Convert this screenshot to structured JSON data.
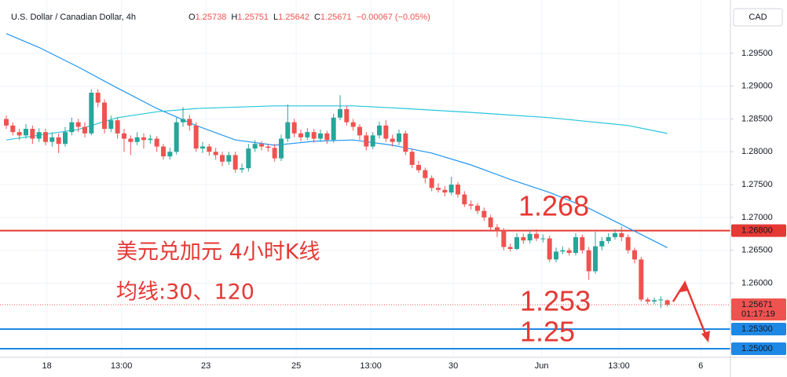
{
  "chart_data": {
    "type": "candlestick",
    "header": {
      "symbol": "U.S. Dollar / Canadian Dollar, 4h",
      "legend": [
        {
          "key": "O",
          "text": "1.25738"
        },
        {
          "key": "H",
          "text": "1.25751"
        },
        {
          "key": "L",
          "text": "1.25642"
        },
        {
          "key": "C",
          "text": "1.25671"
        }
      ],
      "change": "−0.00067 (−0.05%)"
    },
    "currency": "CAD",
    "up_color": "#26a69a",
    "down_color": "#ef5350",
    "open": [
      1.285,
      1.284,
      1.283,
      1.2825,
      1.2835,
      1.282,
      1.283,
      1.2815,
      1.2822,
      1.2812,
      1.283,
      1.2845,
      1.2838,
      1.2828,
      1.289,
      1.2875,
      1.2835,
      1.2848,
      1.2828,
      1.282,
      1.2815,
      1.2822,
      1.2818,
      1.282,
      1.2808,
      1.2793,
      1.28,
      1.2845,
      1.285,
      1.284,
      1.2805,
      1.2808,
      1.28,
      1.2795,
      1.2785,
      1.2795,
      1.2773,
      1.2775,
      1.2805,
      1.2812,
      1.2808,
      1.2806,
      1.279,
      1.282,
      1.2845,
      1.2828,
      1.2822,
      1.283,
      1.282,
      1.2828,
      1.2818,
      1.2852,
      1.2865,
      1.2845,
      1.2838,
      1.2825,
      1.2808,
      1.2825,
      1.284,
      1.282,
      1.2815,
      1.2828,
      1.28,
      1.278,
      1.2772,
      1.276,
      1.2745,
      1.2742,
      1.2738,
      1.275,
      1.2735,
      1.272,
      1.2718,
      1.271,
      1.27,
      1.2685,
      1.268,
      1.2655,
      1.2652,
      1.267,
      1.2665,
      1.2675,
      1.2668,
      1.2668,
      1.2636,
      1.2648,
      1.265,
      1.2646,
      1.267,
      1.265,
      1.2618,
      1.2656,
      1.2664,
      1.267,
      1.2676,
      1.267,
      1.265,
      1.2636,
      1.2575,
      1.2572,
      1.2574,
      1.25738
    ],
    "high": [
      1.2855,
      1.2845,
      1.2835,
      1.2842,
      1.284,
      1.2836,
      1.2835,
      1.283,
      1.2828,
      1.2838,
      1.2852,
      1.285,
      1.2845,
      1.2895,
      1.2895,
      1.288,
      1.2855,
      1.2852,
      1.2835,
      1.2825,
      1.283,
      1.2828,
      1.2826,
      1.2824,
      1.2812,
      1.2806,
      1.2852,
      1.2868,
      1.2856,
      1.2845,
      1.2815,
      1.2812,
      1.2806,
      1.28,
      1.28,
      1.28,
      1.2782,
      1.2812,
      1.2818,
      1.2816,
      1.2812,
      1.2812,
      1.2826,
      1.2872,
      1.285,
      1.2834,
      1.2836,
      1.2835,
      1.2834,
      1.2832,
      1.2858,
      1.2886,
      1.287,
      1.285,
      1.2842,
      1.283,
      1.283,
      1.2846,
      1.2848,
      1.2826,
      1.2834,
      1.2832,
      1.2805,
      1.2786,
      1.2776,
      1.2764,
      1.2752,
      1.2748,
      1.2762,
      1.2754,
      1.274,
      1.2726,
      1.2722,
      1.2715,
      1.2704,
      1.269,
      1.2684,
      1.266,
      1.2676,
      1.2675,
      1.268,
      1.2682,
      1.2674,
      1.2672,
      1.2654,
      1.2656,
      1.2654,
      1.2676,
      1.2674,
      1.2655,
      1.2678,
      1.267,
      1.2676,
      1.2682,
      1.2686,
      1.2674,
      1.2654,
      1.264,
      1.2578,
      1.2578,
      1.258,
      1.25751
    ],
    "low": [
      1.2835,
      1.2825,
      1.2818,
      1.282,
      1.2812,
      1.2815,
      1.281,
      1.2808,
      1.2798,
      1.2808,
      1.2825,
      1.283,
      1.2822,
      1.2825,
      1.2868,
      1.2828,
      1.283,
      1.282,
      1.28,
      1.2795,
      1.281,
      1.2805,
      1.2812,
      1.28,
      1.2788,
      1.2788,
      1.2796,
      1.2838,
      1.2832,
      1.28,
      1.2798,
      1.2794,
      1.2788,
      1.2778,
      1.278,
      1.2768,
      1.2768,
      1.277,
      1.28,
      1.2802,
      1.28,
      1.2785,
      1.2786,
      1.2815,
      1.2822,
      1.2816,
      1.2818,
      1.2814,
      1.2815,
      1.2812,
      1.2814,
      1.2848,
      1.284,
      1.2832,
      1.2818,
      1.2802,
      1.2804,
      1.282,
      1.2815,
      1.2808,
      1.281,
      1.2795,
      1.2775,
      1.2768,
      1.2752,
      1.274,
      1.2738,
      1.2732,
      1.2734,
      1.273,
      1.2716,
      1.2712,
      1.2705,
      1.2695,
      1.268,
      1.267,
      1.265,
      1.2648,
      1.265,
      1.266,
      1.266,
      1.2664,
      1.2662,
      1.2632,
      1.2632,
      1.2644,
      1.2642,
      1.2642,
      1.2645,
      1.2605,
      1.2614,
      1.265,
      1.266,
      1.2666,
      1.2664,
      1.2645,
      1.263,
      1.2572,
      1.2568,
      1.2568,
      1.2562,
      1.25642
    ],
    "close": [
      1.284,
      1.283,
      1.2825,
      1.2835,
      1.282,
      1.283,
      1.2815,
      1.2822,
      1.2812,
      1.283,
      1.2845,
      1.2838,
      1.2828,
      1.289,
      1.2875,
      1.2835,
      1.2848,
      1.2828,
      1.282,
      1.2815,
      1.2822,
      1.2818,
      1.282,
      1.2808,
      1.2793,
      1.28,
      1.2845,
      1.285,
      1.284,
      1.2805,
      1.2808,
      1.28,
      1.2795,
      1.2785,
      1.2795,
      1.2773,
      1.2775,
      1.2805,
      1.2812,
      1.2808,
      1.2806,
      1.279,
      1.282,
      1.2845,
      1.2828,
      1.2822,
      1.283,
      1.282,
      1.2828,
      1.2818,
      1.2852,
      1.2865,
      1.2845,
      1.2838,
      1.2825,
      1.2808,
      1.2825,
      1.284,
      1.282,
      1.2815,
      1.2828,
      1.28,
      1.278,
      1.2772,
      1.276,
      1.2745,
      1.2742,
      1.2738,
      1.275,
      1.2735,
      1.272,
      1.2718,
      1.271,
      1.27,
      1.2685,
      1.268,
      1.2655,
      1.2652,
      1.267,
      1.2665,
      1.2675,
      1.2668,
      1.2668,
      1.2636,
      1.2648,
      1.265,
      1.2646,
      1.267,
      1.265,
      1.2618,
      1.2656,
      1.2664,
      1.267,
      1.2676,
      1.267,
      1.265,
      1.2636,
      1.2575,
      1.2572,
      1.2574,
      1.2575,
      1.25671
    ],
    "moving_averages": [
      {
        "color": "#2196f3",
        "x": [
          0,
          5,
          11,
          17,
          23,
          29,
          35,
          41,
          47,
          53,
          59,
          65,
          71,
          77,
          83,
          89,
          95,
          101
        ],
        "values": [
          1.298,
          1.2959,
          1.2929,
          1.2897,
          1.2866,
          1.284,
          1.2818,
          1.281,
          1.2816,
          1.2818,
          1.281,
          1.2798,
          1.278,
          1.2758,
          1.2738,
          1.2714,
          1.2684,
          1.2654
        ]
      },
      {
        "color": "#26c6da",
        "x": [
          0,
          11,
          17,
          23,
          29,
          41,
          53,
          59,
          71,
          83,
          89,
          95,
          101
        ],
        "values": [
          1.2818,
          1.2834,
          1.2852,
          1.2861,
          1.2866,
          1.287,
          1.287,
          1.2867,
          1.286,
          1.2852,
          1.2846,
          1.284,
          1.2828
        ]
      }
    ],
    "levels": [
      {
        "value": 1.268,
        "label": "1.26800",
        "color": "#e53935"
      },
      {
        "value": 1.253,
        "label": "1.25300",
        "color": "#1e88e5"
      },
      {
        "value": 1.25,
        "label": "1.25000",
        "color": "#1e88e5"
      }
    ],
    "last_price": {
      "value": 1.25671,
      "label": "1.25671",
      "countdown": "01:17:19",
      "color": "#ef5350"
    },
    "annotations": [
      "1.268",
      "1.253",
      "1.25",
      "美元兑加元 4小时K线",
      "均线:30、120"
    ],
    "xlim": [
      -0.96,
      110.64
    ],
    "xticks": [
      {
        "value": 6.2,
        "label": "18"
      },
      {
        "value": 17.6,
        "label": "13:00"
      },
      {
        "value": 30.5,
        "label": "23"
      },
      {
        "value": 44.3,
        "label": "25"
      },
      {
        "value": 55.7,
        "label": "13:00"
      },
      {
        "value": 68.3,
        "label": "30"
      },
      {
        "value": 81.8,
        "label": "Jun"
      },
      {
        "value": 93.6,
        "label": "13:00"
      },
      {
        "value": 106.1,
        "label": "6"
      }
    ],
    "ylim": [
      1.24833,
      1.30312
    ],
    "yticks": [
      {
        "value": 1.26,
        "label": "1.26000"
      },
      {
        "value": 1.265,
        "label": "1.26500"
      },
      {
        "value": 1.27,
        "label": "1.27000"
      },
      {
        "value": 1.275,
        "label": "1.27500"
      },
      {
        "value": 1.28,
        "label": "1.28000"
      },
      {
        "value": 1.285,
        "label": "1.28500"
      },
      {
        "value": 1.29,
        "label": "1.29000"
      },
      {
        "value": 1.295,
        "label": "1.29500"
      }
    ],
    "grid": true
  }
}
